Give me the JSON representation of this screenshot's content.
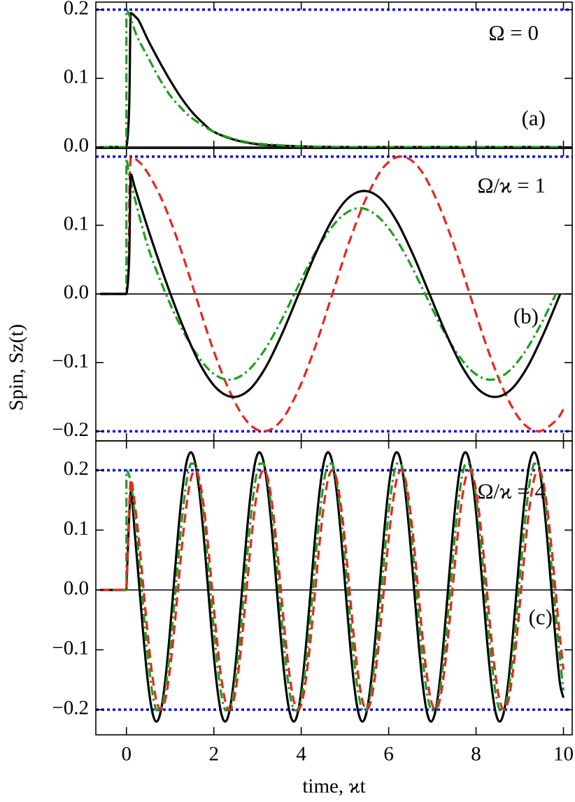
{
  "chart_data": [
    {
      "type": "line",
      "xlim": [
        -0.7,
        10.2
      ],
      "ylim": [
        -0.002,
        0.211
      ],
      "xticks": [
        0,
        2,
        4,
        6,
        8,
        10
      ],
      "yticks": [
        {
          "value": 0,
          "label": "0.0"
        },
        {
          "value": 0.1,
          "label": "0.1"
        },
        {
          "value": 0.2,
          "label": "0.2"
        }
      ],
      "reference_lines": [
        {
          "value": 0,
          "color": "#000000",
          "style": "solid"
        },
        {
          "value": 0.2,
          "color": "#1414e6",
          "style": "dotted"
        }
      ],
      "annotations": [
        "Ω = 0",
        "(a)"
      ],
      "series": [
        {
          "color": "#000000",
          "style": "solid",
          "x": [
            -0.6,
            0,
            0.1,
            0.2,
            0.3,
            0.5,
            0.75,
            1,
            1.25,
            1.5,
            1.75,
            2,
            2.5,
            3,
            3.5,
            4,
            5,
            10
          ],
          "values": [
            0,
            0,
            0.195,
            0.19,
            0.182,
            0.155,
            0.125,
            0.097,
            0.072,
            0.051,
            0.035,
            0.022,
            0.01,
            0.004,
            0.002,
            0.001,
            0,
            0
          ]
        },
        {
          "color": "#1e9e1e",
          "style": "dashdot",
          "x": [
            -0.6,
            0,
            0,
            0.25,
            0.5,
            0.75,
            1,
            1.25,
            1.5,
            2,
            2.5,
            3,
            4,
            5,
            10
          ],
          "values": [
            0,
            0,
            0.2,
            0.16,
            0.13,
            0.1,
            0.075,
            0.057,
            0.042,
            0.022,
            0.011,
            0.005,
            0.001,
            0,
            0
          ]
        }
      ]
    },
    {
      "type": "line",
      "xlim": [
        -0.7,
        10.2
      ],
      "ylim": [
        -0.214,
        0.212
      ],
      "xticks": [
        0,
        2,
        4,
        6,
        8,
        10
      ],
      "yticks": [
        {
          "value": -0.2,
          "label": "−0.2"
        },
        {
          "value": -0.1,
          "label": "−0.1"
        },
        {
          "value": 0,
          "label": "0.0"
        },
        {
          "value": 0.1,
          "label": "0.1"
        }
      ],
      "reference_lines": [
        {
          "value": 0,
          "color": "#000000",
          "style": "solid"
        },
        {
          "value": 0.2,
          "color": "#1414e6",
          "style": "dotted"
        },
        {
          "value": -0.2,
          "color": "#1414e6",
          "style": "dotted"
        }
      ],
      "annotations": [
        "Ω/ϰ = 1",
        "(b)"
      ],
      "ylabel": "Spin, Sz(t)",
      "series": [
        {
          "color": "#e8261e",
          "style": "dashed",
          "x": [
            -0.6,
            0,
            0.1,
            0.393,
            0.785,
            1.178,
            1.571,
            1.963,
            2.356,
            2.749,
            3.142,
            3.534,
            3.927,
            4.32,
            4.712,
            5.105,
            5.498,
            5.89,
            6.283,
            6.676,
            7.069,
            7.461,
            7.854,
            8.247,
            8.639,
            9.032,
            9.425,
            9.817,
            10
          ],
          "values": [
            0,
            0,
            0.199,
            0.185,
            0.141,
            0.077,
            0,
            -0.077,
            -0.141,
            -0.185,
            -0.2,
            -0.185,
            -0.141,
            -0.077,
            0,
            0.077,
            0.141,
            0.185,
            0.2,
            0.185,
            0.141,
            0.077,
            0,
            -0.077,
            -0.141,
            -0.185,
            -0.2,
            -0.185,
            -0.168
          ]
        },
        {
          "color": "#1e9e1e",
          "style": "dashdot",
          "x": [
            -0.6,
            0,
            0,
            0.102,
            0.476,
            0.85,
            1.224,
            1.598,
            1.972,
            2.346,
            2.72,
            3.094,
            3.468,
            3.842,
            4.216,
            4.59,
            4.964,
            5.338,
            5.712,
            6.086,
            6.46,
            6.834,
            7.208,
            7.582,
            7.956,
            8.33,
            8.704,
            9.078,
            9.452,
            9.826
          ],
          "values": [
            0,
            0,
            0.197,
            0.162,
            0.072,
            0.008,
            -0.045,
            -0.087,
            -0.115,
            -0.125,
            -0.115,
            -0.088,
            -0.048,
            0,
            0.048,
            0.088,
            0.115,
            0.125,
            0.115,
            0.088,
            0.048,
            0,
            -0.048,
            -0.088,
            -0.115,
            -0.125,
            -0.115,
            -0.088,
            -0.048,
            0
          ]
        },
        {
          "color": "#000000",
          "style": "solid",
          "x": [
            -0.6,
            0,
            0.1,
            0.202,
            0.576,
            0.95,
            1.324,
            1.698,
            2.072,
            2.446,
            2.82,
            3.194,
            3.568,
            3.942,
            4.316,
            4.69,
            5.064,
            5.438,
            5.812,
            6.186,
            6.56,
            6.934,
            7.308,
            7.682,
            8.056,
            8.43,
            8.804,
            9.178,
            9.552,
            9.926
          ],
          "values": [
            0,
            0,
            0.174,
            0.153,
            0.079,
            0.01,
            -0.052,
            -0.104,
            -0.138,
            -0.15,
            -0.139,
            -0.106,
            -0.057,
            0,
            0.057,
            0.106,
            0.139,
            0.15,
            0.139,
            0.106,
            0.057,
            0,
            -0.057,
            -0.106,
            -0.139,
            -0.15,
            -0.139,
            -0.106,
            -0.057,
            0
          ]
        }
      ]
    },
    {
      "type": "line",
      "xlim": [
        -0.7,
        10.2
      ],
      "ylim": [
        -0.242,
        0.249
      ],
      "xticks": [
        0,
        2,
        4,
        6,
        8,
        10
      ],
      "yticks": [
        {
          "value": -0.2,
          "label": "−0.2"
        },
        {
          "value": -0.1,
          "label": "−0.1"
        },
        {
          "value": 0,
          "label": "0.0"
        },
        {
          "value": 0.1,
          "label": "0.1"
        },
        {
          "value": 0.2,
          "label": "0.2"
        }
      ],
      "reference_lines": [
        {
          "value": 0,
          "color": "#000000",
          "style": "solid"
        },
        {
          "value": 0.2,
          "color": "#1414e6",
          "style": "dotted"
        },
        {
          "value": -0.2,
          "color": "#1414e6",
          "style": "dotted"
        }
      ],
      "annotations": [
        "Ω/ϰ = 4",
        "(c)"
      ],
      "xlabel": "time, ϰt",
      "x": [
        -0.6,
        0,
        0,
        0.098,
        0.196,
        0.295,
        0.393,
        0.491,
        0.589,
        0.687,
        0.785,
        0.884,
        0.982,
        1.08,
        1.178,
        1.276,
        1.374,
        1.473,
        1.571,
        1.669,
        1.767,
        1.865,
        1.963,
        2.062,
        2.16,
        2.258,
        2.356,
        2.454,
        2.553,
        2.651,
        2.749,
        2.847,
        2.945,
        3.043,
        3.142,
        3.24,
        3.338,
        3.436,
        3.534,
        3.632,
        3.731,
        3.829,
        3.927,
        4.025,
        4.123,
        4.222,
        4.32,
        4.418,
        4.516,
        4.614,
        4.712,
        4.811,
        4.909,
        5.007,
        5.105,
        5.203,
        5.301,
        5.4,
        5.498,
        5.596,
        5.694,
        5.792,
        5.89,
        5.989,
        6.087,
        6.185,
        6.283,
        6.381,
        6.48,
        6.578,
        6.676,
        6.774,
        6.872,
        6.97,
        7.069,
        7.167,
        7.265,
        7.363,
        7.461,
        7.56,
        7.658,
        7.756,
        7.854,
        7.952,
        8.05,
        8.149,
        8.247,
        8.345,
        8.443,
        8.541,
        8.639,
        8.738,
        8.836,
        8.934,
        9.032,
        9.13,
        9.228,
        9.327,
        9.425,
        9.523,
        9.621,
        9.719,
        9.817,
        9.916,
        10
      ],
      "series": [
        {
          "color": "#000000",
          "style": "solid",
          "values": [
            0,
            0,
            0,
            0.164,
            0.091,
            0.005,
            -0.081,
            -0.154,
            -0.203,
            -0.22,
            -0.203,
            -0.154,
            -0.081,
            0.005,
            0.091,
            0.164,
            0.213,
            0.23,
            0.213,
            0.164,
            0.091,
            0.005,
            -0.081,
            -0.154,
            -0.203,
            -0.22,
            -0.203,
            -0.154,
            -0.081,
            0.005,
            0.091,
            0.164,
            0.213,
            0.23,
            0.213,
            0.164,
            0.091,
            0.005,
            -0.081,
            -0.154,
            -0.203,
            -0.22,
            -0.203,
            -0.154,
            -0.081,
            0.005,
            0.091,
            0.164,
            0.213,
            0.23,
            0.213,
            0.164,
            0.091,
            0.005,
            -0.081,
            -0.154,
            -0.203,
            -0.22,
            -0.203,
            -0.154,
            -0.081,
            0.005,
            0.091,
            0.164,
            0.213,
            0.23,
            0.213,
            0.164,
            0.091,
            0.005,
            -0.081,
            -0.154,
            -0.203,
            -0.22,
            -0.203,
            -0.154,
            -0.081,
            0.005,
            0.091,
            0.164,
            0.213,
            0.23,
            0.213,
            0.164,
            0.091,
            0.005,
            -0.081,
            -0.154,
            -0.203,
            -0.22,
            -0.203,
            -0.154,
            -0.081,
            0.005,
            0.091,
            0.164,
            0.213,
            0.23,
            0.213,
            0.164,
            0.091,
            0.005,
            -0.081,
            -0.154,
            -0.18
          ]
        },
        {
          "color": "#1e9e1e",
          "style": "dashdot",
          "values": [
            0,
            0,
            0.2,
            0.18,
            0.122,
            0.046,
            -0.036,
            -0.112,
            -0.17,
            -0.201,
            -0.201,
            -0.17,
            -0.112,
            -0.036,
            0.046,
            0.122,
            0.18,
            0.211,
            0.211,
            0.18,
            0.122,
            0.046,
            -0.036,
            -0.112,
            -0.17,
            -0.201,
            -0.201,
            -0.17,
            -0.112,
            -0.036,
            0.046,
            0.122,
            0.18,
            0.211,
            0.211,
            0.18,
            0.122,
            0.046,
            -0.036,
            -0.112,
            -0.17,
            -0.201,
            -0.201,
            -0.17,
            -0.112,
            -0.036,
            0.046,
            0.122,
            0.18,
            0.211,
            0.211,
            0.18,
            0.122,
            0.046,
            -0.036,
            -0.112,
            -0.17,
            -0.201,
            -0.201,
            -0.17,
            -0.112,
            -0.036,
            0.046,
            0.122,
            0.18,
            0.211,
            0.211,
            0.18,
            0.122,
            0.046,
            -0.036,
            -0.112,
            -0.17,
            -0.201,
            -0.201,
            -0.17,
            -0.112,
            -0.036,
            0.046,
            0.122,
            0.18,
            0.211,
            0.211,
            0.18,
            0.122,
            0.046,
            -0.036,
            -0.112,
            -0.17,
            -0.201,
            -0.201,
            -0.17,
            -0.112,
            -0.036,
            0.046,
            0.122,
            0.18,
            0.211,
            0.211,
            0.18,
            0.122,
            0.046,
            -0.036,
            -0.112,
            -0.168
          ]
        },
        {
          "color": "#e8261e",
          "style": "dashed",
          "values": [
            0,
            0,
            0,
            0.185,
            0.141,
            0.077,
            0,
            -0.077,
            -0.141,
            -0.185,
            -0.2,
            -0.185,
            -0.141,
            -0.077,
            0,
            0.077,
            0.141,
            0.185,
            0.2,
            0.185,
            0.141,
            0.077,
            0,
            -0.077,
            -0.141,
            -0.185,
            -0.2,
            -0.185,
            -0.141,
            -0.077,
            0,
            0.077,
            0.141,
            0.185,
            0.2,
            0.185,
            0.141,
            0.077,
            0,
            -0.077,
            -0.141,
            -0.185,
            -0.2,
            -0.185,
            -0.141,
            -0.077,
            0,
            0.077,
            0.141,
            0.185,
            0.2,
            0.185,
            0.141,
            0.077,
            0,
            -0.077,
            -0.141,
            -0.185,
            -0.2,
            -0.185,
            -0.141,
            -0.077,
            0,
            0.077,
            0.141,
            0.185,
            0.2,
            0.185,
            0.141,
            0.077,
            0,
            -0.077,
            -0.141,
            -0.185,
            -0.2,
            -0.185,
            -0.141,
            -0.077,
            0,
            0.077,
            0.141,
            0.185,
            0.2,
            0.185,
            0.141,
            0.077,
            0,
            -0.077,
            -0.141,
            -0.185,
            -0.2,
            -0.185,
            -0.141,
            -0.077,
            0,
            0.077,
            0.141,
            0.185,
            0.2,
            0.185,
            0.141,
            0.077,
            0,
            -0.077,
            -0.133
          ]
        }
      ]
    }
  ]
}
